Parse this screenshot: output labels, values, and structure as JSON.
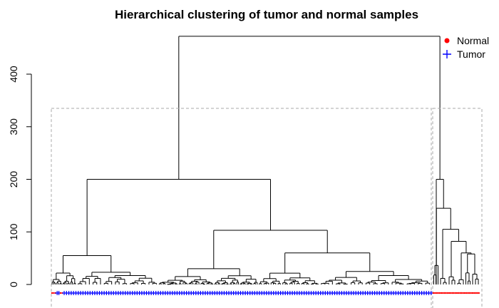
{
  "chart_data": {
    "type": "dendrogram",
    "title": "Hierarchical clustering of tumor and normal samples",
    "xlabel": "",
    "ylabel": "",
    "ylim": [
      0,
      480
    ],
    "y_ticks": [
      0,
      100,
      200,
      300,
      400
    ],
    "legend": {
      "placement": "top-right",
      "entries": [
        {
          "label": "Normal",
          "color": "#ff0000",
          "symbol": "dot"
        },
        {
          "label": "Tumor",
          "color": "#0000ff",
          "symbol": "plus"
        }
      ]
    },
    "root_height": 472,
    "clusters": [
      {
        "id": 1,
        "samples": "left",
        "height_cut": 335
      },
      {
        "id": 2,
        "samples": "right",
        "height_cut": 335
      }
    ],
    "main_merges": {
      "left_cluster": 200,
      "left_left": 55,
      "left_right": 103,
      "left_right_right": 60,
      "right_cluster": 200,
      "right_sub": 145,
      "right_sub2": 105,
      "right_sub3": 82,
      "right_sub4": 60
    },
    "colors": {
      "normal": "#ff0000",
      "tumor": "#0000ff",
      "tree": "#000000",
      "box": "#aaaaaa"
    }
  }
}
